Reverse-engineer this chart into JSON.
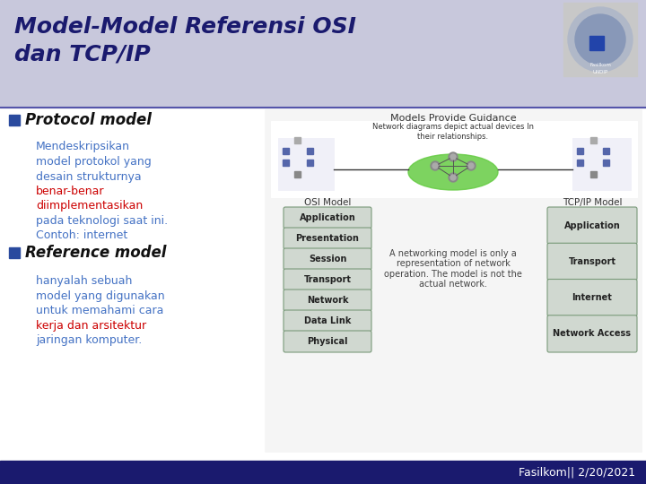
{
  "title_line1": "Model-Model Referensi OSI",
  "title_line2": "dan TCP/IP",
  "title_bg_color": "#c8c8dc",
  "title_text_color": "#1a1a6e",
  "slide_bg_color": "#ffffff",
  "footer_bg_color": "#1a1a6e",
  "footer_text": "Fasilkom|| 2/20/2021",
  "footer_text_color": "#ffffff",
  "bullet1_header": "Protocol model",
  "bullet2_header": "Reference model",
  "bullet_sq_color": "#2a4a9e",
  "text_blue_color": "#4472c4",
  "text_red_color": "#cc0000",
  "text_dark_color": "#1a1a1a",
  "osi_layers": [
    "Application",
    "Presentation",
    "Session",
    "Transport",
    "Network",
    "Data Link",
    "Physical"
  ],
  "tcpip_layers": [
    "Application",
    "Transport",
    "Internet",
    "Network Access"
  ],
  "diagram_title": "Models Provide Guidance",
  "diagram_note": "A networking model is only a\nrepresentation of network\noperation. The model is not the\nactual network.",
  "network_note": "Network diagrams depict actual devices In\ntheir relationships.",
  "osi_label": "OSI Model",
  "tcpip_label": "TCP/IP Model",
  "layer_box_color": "#d0d8d0",
  "layer_box_edge": "#7a9a7a",
  "layer_text_color": "#222222"
}
